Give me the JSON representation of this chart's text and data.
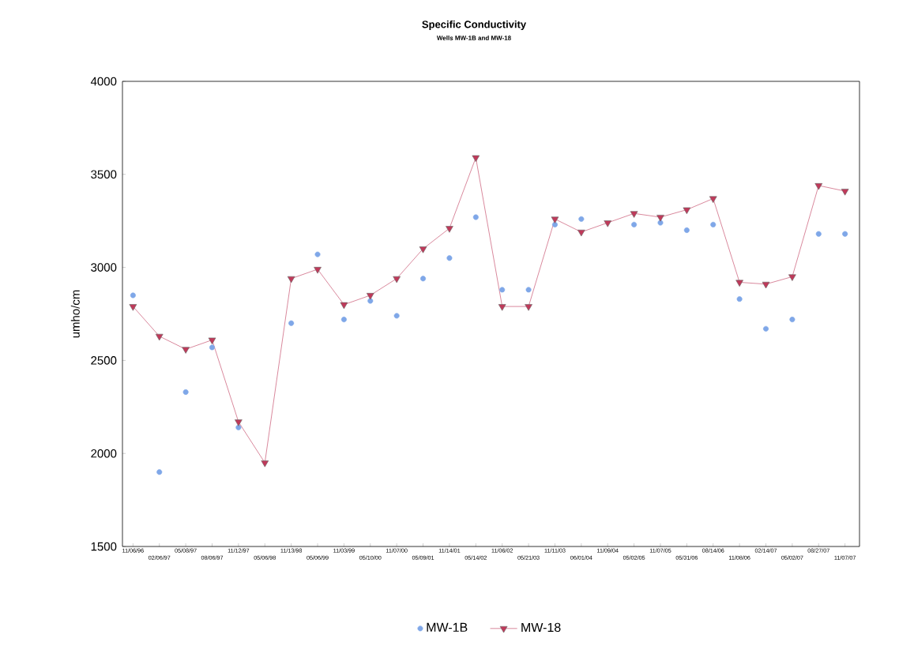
{
  "chart_data": {
    "type": "line",
    "title": "Specific Conductivity",
    "subtitle": "Wells MW-1B and MW-18",
    "ylabel": "umho/cm",
    "categories": [
      "11/06/96",
      "02/06/97",
      "05/08/97",
      "08/06/97",
      "11/12/97",
      "05/06/98",
      "11/13/98",
      "05/06/99",
      "11/03/99",
      "05/10/00",
      "11/07/00",
      "05/09/01",
      "11/14/01",
      "05/14/02",
      "11/06/02",
      "05/21/03",
      "11/11/03",
      "06/01/04",
      "11/09/04",
      "05/02/05",
      "11/07/05",
      "05/31/06",
      "08/14/06",
      "11/08/06",
      "02/14/07",
      "05/02/07",
      "08/27/07",
      "11/07/07"
    ],
    "series": [
      {
        "name": "MW-1B",
        "type": "scatter",
        "color": "#7fa7e8",
        "marker": "circle",
        "values": [
          2850,
          1900,
          2330,
          2570,
          2140,
          null,
          2700,
          3070,
          2720,
          2820,
          2740,
          2940,
          3050,
          3270,
          2880,
          2880,
          3230,
          3260,
          null,
          3230,
          3240,
          3200,
          3230,
          2830,
          2670,
          2720,
          3180,
          3180
        ]
      },
      {
        "name": "MW-18",
        "color": "#c0395a",
        "marker": "triangle",
        "line_style": "solid",
        "values": [
          2790,
          2630,
          2560,
          2610,
          2170,
          1950,
          2940,
          2990,
          2800,
          2850,
          2940,
          3100,
          3210,
          3590,
          2790,
          2790,
          3260,
          3190,
          3240,
          3290,
          3270,
          3310,
          3370,
          2920,
          2910,
          2950,
          3440,
          3410
        ]
      }
    ],
    "ylim": [
      1500,
      4000
    ],
    "yticks": [
      1500,
      2000,
      2500,
      3000,
      3500,
      4000
    ],
    "grid": false,
    "legend": "bottom"
  }
}
